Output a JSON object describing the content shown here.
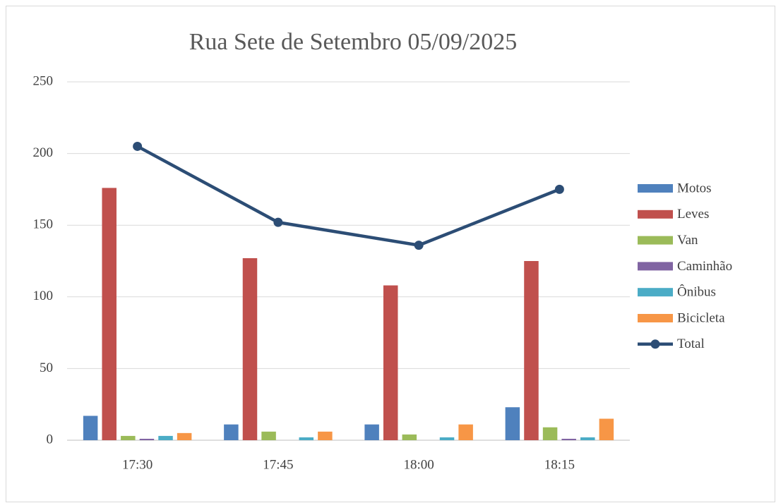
{
  "chart_data": {
    "type": "bar",
    "title": "Rua Sete de Setembro 05/09/2025",
    "categories": [
      "17:30",
      "17:45",
      "18:00",
      "18:15"
    ],
    "series": [
      {
        "name": "Motos",
        "color": "#4f81bd",
        "values": [
          17,
          11,
          11,
          23
        ]
      },
      {
        "name": "Leves",
        "color": "#c0504d",
        "values": [
          176,
          127,
          108,
          125
        ]
      },
      {
        "name": "Van",
        "color": "#9bbb59",
        "values": [
          3,
          6,
          4,
          9
        ]
      },
      {
        "name": "Caminhão",
        "color": "#8064a2",
        "values": [
          1,
          0,
          0,
          1
        ]
      },
      {
        "name": "Ônibus",
        "color": "#4bacc6",
        "values": [
          3,
          2,
          2,
          2
        ]
      },
      {
        "name": "Bicicleta",
        "color": "#f79646",
        "values": [
          5,
          6,
          11,
          15
        ]
      },
      {
        "name": "Total",
        "color": "#2c4d75",
        "type": "line",
        "values": [
          205,
          152,
          136,
          175
        ]
      }
    ],
    "ylim": [
      0,
      250
    ],
    "yticks": [
      0,
      50,
      100,
      150,
      200,
      250
    ],
    "grid": true,
    "legend": "right"
  }
}
